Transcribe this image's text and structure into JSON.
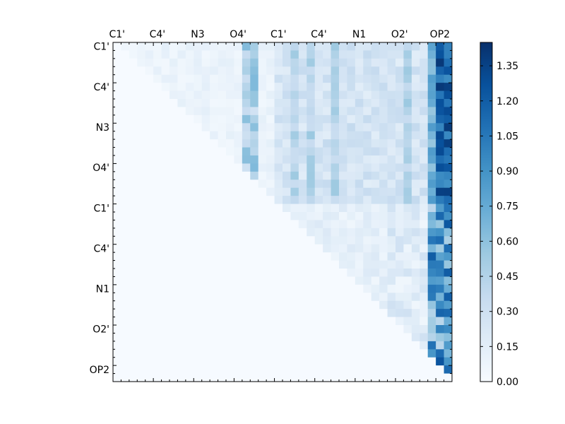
{
  "chart_data": {
    "type": "heatmap",
    "title": "",
    "xlabel": "",
    "ylabel": "",
    "colormap": "Blues",
    "colormap_stops": [
      "#f7fbff",
      "#deebf7",
      "#c6dbef",
      "#9ecae1",
      "#6baed6",
      "#4292c6",
      "#2171b5",
      "#08519c",
      "#08306b"
    ],
    "value_range": [
      0,
      1.45
    ],
    "n_rows": 42,
    "n_cols": 42,
    "x_ticklabels": [
      "C1'",
      "C4'",
      "N3",
      "O4'",
      "C1'",
      "C4'",
      "N1",
      "O2'",
      "OP2"
    ],
    "x_tick_index": [
      0,
      5,
      10,
      15,
      20,
      25,
      30,
      35,
      40
    ],
    "y_ticklabels": [
      "C1'",
      "C4'",
      "N3",
      "O4'",
      "C1'",
      "C4'",
      "N1",
      "O2'",
      "OP2"
    ],
    "y_tick_index": [
      0,
      5,
      10,
      15,
      20,
      25,
      30,
      35,
      40
    ],
    "colorbar_ticks": [
      0.0,
      0.15,
      0.3,
      0.45,
      0.6,
      0.75,
      0.9,
      1.05,
      1.2,
      1.35
    ],
    "colorbar_ticklabels": [
      "0.00",
      "0.15",
      "0.30",
      "0.45",
      "0.60",
      "0.75",
      "0.90",
      "1.05",
      "1.20",
      "1.35"
    ],
    "grid": false
  }
}
